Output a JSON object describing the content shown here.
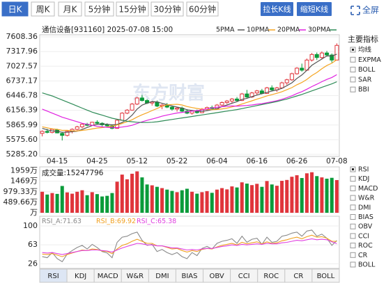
{
  "toolbar": {
    "periods": [
      "日K",
      "周K",
      "月K",
      "5分钟",
      "15分钟",
      "30分钟",
      "60分钟"
    ],
    "selected": 0,
    "buttons": [
      "拉长K线",
      "缩短K线"
    ],
    "fullscreen": "全屏"
  },
  "indicator_panel": {
    "main_title": "主要指标",
    "main": [
      "均线",
      "EXPMA",
      "BOLL",
      "SAR",
      "BBI"
    ],
    "main_selected": 0,
    "sub": [
      "RSI",
      "KDJ",
      "MACD",
      "W&R",
      "DMI",
      "BIAS",
      "OBV",
      "CCI",
      "ROC",
      "CR",
      "BOLL"
    ],
    "sub_selected": 0
  },
  "bottom_tabs": {
    "tabs": [
      "RSI",
      "KDJ",
      "MACD",
      "W&R",
      "DMI",
      "BIAS",
      "OBV",
      "CCI",
      "ROC",
      "CR",
      "BOLL"
    ],
    "selected": 0
  },
  "watermark": "东方财富",
  "chart_data": [
    {
      "type": "candlestick",
      "title": "通信设备[931160] 2025-07-08 15:00",
      "categories": [
        null,
        null,
        null,
        "04-15",
        null,
        null,
        null,
        null,
        null,
        null,
        null,
        "04-25",
        null,
        null,
        null,
        null,
        null,
        null,
        null,
        "05-12",
        null,
        null,
        null,
        null,
        null,
        null,
        null,
        "05-22",
        null,
        null,
        null,
        null,
        null,
        null,
        null,
        "06-04",
        null,
        null,
        null,
        null,
        null,
        null,
        null,
        "06-16",
        null,
        null,
        null,
        null,
        null,
        null,
        null,
        "06-26",
        null,
        null,
        null,
        null,
        null,
        null,
        null,
        "07-08"
      ],
      "open": [
        5700,
        5740,
        5720,
        5770,
        5700,
        5660,
        5740,
        5780,
        5830,
        5880,
        5860,
        5920,
        5900,
        5870,
        5850,
        5800,
        5960,
        6100,
        6160,
        6280,
        6400,
        6350,
        6300,
        6320,
        6240,
        6260,
        6220,
        6180,
        6200,
        6140,
        6100,
        6150,
        6110,
        6180,
        6210,
        6190,
        6260,
        6310,
        6340,
        6380,
        6350,
        6480,
        6420,
        6500,
        6540,
        6490,
        6600,
        6560,
        6600,
        6700,
        6760,
        6880,
        6990,
        6950,
        7150,
        7260,
        7200,
        7290,
        7250,
        7150
      ],
      "high": [
        5760,
        5790,
        5800,
        5790,
        5720,
        5760,
        5800,
        5850,
        5900,
        5910,
        5930,
        5960,
        5920,
        5900,
        5880,
        5980,
        6120,
        6180,
        6300,
        6420,
        6460,
        6380,
        6340,
        6350,
        6280,
        6300,
        6250,
        6220,
        6230,
        6180,
        6160,
        6170,
        6200,
        6230,
        6250,
        6280,
        6330,
        6360,
        6400,
        6420,
        6500,
        6560,
        6520,
        6560,
        6580,
        6620,
        6650,
        6620,
        6720,
        6780,
        6900,
        7010,
        7080,
        7180,
        7290,
        7300,
        7320,
        7330,
        7280,
        7480
      ],
      "low": [
        5640,
        5700,
        5700,
        5700,
        5560,
        5640,
        5700,
        5760,
        5800,
        5840,
        5850,
        5880,
        5840,
        5830,
        5780,
        5790,
        5950,
        6080,
        6150,
        6260,
        6330,
        6280,
        6250,
        6220,
        6180,
        6200,
        6150,
        6130,
        6120,
        6080,
        6070,
        6090,
        6100,
        6150,
        6170,
        6180,
        6240,
        6280,
        6300,
        6320,
        6340,
        6400,
        6400,
        6460,
        6470,
        6480,
        6540,
        6520,
        6580,
        6660,
        6740,
        6860,
        6920,
        6940,
        7120,
        7150,
        7160,
        7220,
        7100,
        7140
      ],
      "close": [
        5740,
        5720,
        5780,
        5710,
        5660,
        5740,
        5780,
        5830,
        5880,
        5860,
        5920,
        5900,
        5870,
        5850,
        5800,
        5960,
        6100,
        6160,
        6280,
        6400,
        6350,
        6300,
        6320,
        6240,
        6260,
        6220,
        6180,
        6200,
        6140,
        6100,
        6150,
        6110,
        6180,
        6210,
        6190,
        6260,
        6310,
        6340,
        6380,
        6350,
        6480,
        6420,
        6500,
        6540,
        6490,
        6600,
        6560,
        6600,
        6700,
        6760,
        6880,
        6990,
        6950,
        7150,
        7260,
        7200,
        7290,
        7250,
        7150,
        7440
      ],
      "up_color": "#e0343b",
      "down_color": "#0a9b3a",
      "lines": [
        {
          "name": "5PMA",
          "color": "#555555",
          "values": [
            5800,
            5770,
            5750,
            5740,
            5722,
            5722,
            5734,
            5744,
            5778,
            5818,
            5854,
            5878,
            5886,
            5880,
            5868,
            5876,
            5916,
            5974,
            6060,
            6180,
            6258,
            6298,
            6330,
            6322,
            6294,
            6268,
            6244,
            6220,
            6200,
            6168,
            6154,
            6140,
            6136,
            6150,
            6168,
            6190,
            6230,
            6262,
            6296,
            6328,
            6372,
            6394,
            6426,
            6458,
            6486,
            6510,
            6538,
            6558,
            6590,
            6644,
            6700,
            6786,
            6856,
            6946,
            7046,
            7110,
            7170,
            7230,
            7230,
            7266
          ]
        },
        {
          "name": "10PMA",
          "color": "#f5a623",
          "values": [
            5830,
            5810,
            5790,
            5780,
            5760,
            5761,
            5752,
            5747,
            5759,
            5770,
            5788,
            5806,
            5815,
            5829,
            5843,
            5865,
            5897,
            5930,
            5970,
            6024,
            6067,
            6107,
            6152,
            6191,
            6237,
            6263,
            6271,
            6275,
            6261,
            6231,
            6211,
            6192,
            6178,
            6175,
            6168,
            6172,
            6185,
            6199,
            6223,
            6248,
            6281,
            6312,
            6344,
            6377,
            6407,
            6441,
            6466,
            6492,
            6524,
            6565,
            6605,
            6662,
            6707,
            6768,
            6845,
            6905,
            6978,
            7043,
            7088,
            7156
          ]
        },
        {
          "name": "20PMA",
          "color": "#e020e0",
          "values": [
            6180,
            6140,
            6100,
            6060,
            6020,
            5990,
            5960,
            5930,
            5900,
            5880,
            5860,
            5840,
            5830,
            5820,
            5815,
            5815,
            5825,
            5840,
            5860,
            5895,
            5928,
            5957,
            5984,
            6010,
            6040,
            6064,
            6084,
            6103,
            6116,
            6128,
            6139,
            6150,
            6165,
            6183,
            6203,
            6218,
            6228,
            6237,
            6242,
            6240,
            6246,
            6252,
            6261,
            6276,
            6288,
            6307,
            6326,
            6346,
            6374,
            6407,
            6443,
            6487,
            6526,
            6573,
            6626,
            6673,
            6722,
            6768,
            6806,
            6861
          ]
        },
        {
          "name": "30PMA",
          "color": "#2e8b57",
          "values": [
            6500,
            6470,
            6440,
            6400,
            6360,
            6320,
            6280,
            6240,
            6200,
            6160,
            6120,
            6090,
            6060,
            6030,
            6000,
            5980,
            5960,
            5940,
            5930,
            5920,
            5915,
            5915,
            5920,
            5930,
            5945,
            5960,
            5975,
            5990,
            6005,
            6020,
            6035,
            6050,
            6065,
            6080,
            6095,
            6110,
            6125,
            6140,
            6155,
            6170,
            6190,
            6210,
            6230,
            6250,
            6270,
            6290,
            6310,
            6330,
            6355,
            6380,
            6410,
            6440,
            6470,
            6505,
            6540,
            6575,
            6610,
            6645,
            6680,
            6720
          ]
        }
      ],
      "ylim": [
        5244,
        7650
      ],
      "yticks": [
        7608.36,
        7317.96,
        7027.57,
        6737.17,
        6446.78,
        6156.39,
        5865.99,
        {
          "value": 5575.6,
          "label": "5575.60"
        },
        {
          "value": 5285.2,
          "label": "5285.20"
        }
      ]
    },
    {
      "type": "bar",
      "title": "成交量:",
      "values": [
        9800000,
        8500000,
        9200000,
        8800000,
        12500000,
        9500000,
        8900000,
        9800000,
        10500000,
        8200000,
        9600000,
        8700000,
        7600000,
        7900000,
        9200000,
        14500000,
        17800000,
        15600000,
        18200000,
        19300000,
        16500000,
        13200000,
        12800000,
        12100000,
        11500000,
        10800000,
        10200000,
        9600000,
        10500000,
        11200000,
        9800000,
        8900000,
        9600000,
        10100000,
        9300000,
        10800000,
        11500000,
        10900000,
        12300000,
        11800000,
        14200000,
        13600000,
        12900000,
        13500000,
        12100000,
        14800000,
        13200000,
        12600000,
        14900000,
        15300000,
        16800000,
        17500000,
        16200000,
        18400000,
        18900000,
        17100000,
        16500000,
        15900000,
        16300000,
        15247796
      ],
      "ylim": [
        0,
        21400000
      ],
      "yticks": [
        {
          "value": 19590000,
          "label": "1959万"
        },
        {
          "value": 14690000,
          "label": "1469万"
        },
        {
          "value": 9793300,
          "label": "979.33万"
        },
        {
          "value": 4896600,
          "label": "489.66万"
        },
        {
          "value": 0,
          "label": "万"
        }
      ]
    },
    {
      "type": "line",
      "series": [
        {
          "name": "RSI_A:",
          "color": "#8a8a8a",
          "values": [
            40,
            38,
            48,
            36,
            30,
            45,
            52,
            58,
            62,
            55,
            64,
            58,
            50,
            47,
            38,
            68,
            78,
            80,
            85,
            88,
            72,
            62,
            64,
            50,
            54,
            48,
            44,
            48,
            40,
            36,
            48,
            42,
            56,
            60,
            55,
            66,
            70,
            72,
            75,
            66,
            80,
            68,
            74,
            76,
            64,
            78,
            68,
            70,
            80,
            82,
            86,
            88,
            80,
            90,
            92,
            80,
            84,
            76,
            62,
            71.63
          ]
        },
        {
          "name": "RSI_B:",
          "color": "#f0a020",
          "values": [
            45,
            44,
            46,
            43,
            40,
            44,
            47,
            50,
            53,
            52,
            55,
            54,
            51,
            50,
            46,
            55,
            62,
            65,
            70,
            74,
            70,
            66,
            66,
            61,
            61,
            58,
            55,
            56,
            52,
            49,
            52,
            50,
            54,
            56,
            55,
            59,
            62,
            64,
            66,
            63,
            68,
            65,
            67,
            69,
            65,
            69,
            66,
            67,
            71,
            73,
            76,
            78,
            75,
            79,
            82,
            78,
            79,
            76,
            70,
            69.92
          ]
        },
        {
          "name": "RSI_C:",
          "color": "#e040e0",
          "values": [
            48,
            47,
            48,
            46,
            44,
            46,
            48,
            50,
            52,
            52,
            53,
            53,
            52,
            51,
            49,
            53,
            57,
            60,
            63,
            66,
            65,
            63,
            63,
            61,
            61,
            59,
            57,
            57,
            55,
            53,
            54,
            53,
            55,
            56,
            56,
            58,
            60,
            61,
            63,
            62,
            64,
            63,
            64,
            65,
            64,
            66,
            65,
            65,
            67,
            68,
            70,
            72,
            71,
            73,
            75,
            73,
            74,
            73,
            69,
            65.38
          ]
        }
      ],
      "ylim": [
        17,
        119
      ],
      "yticks": [
        100,
        63,
        26
      ]
    }
  ]
}
